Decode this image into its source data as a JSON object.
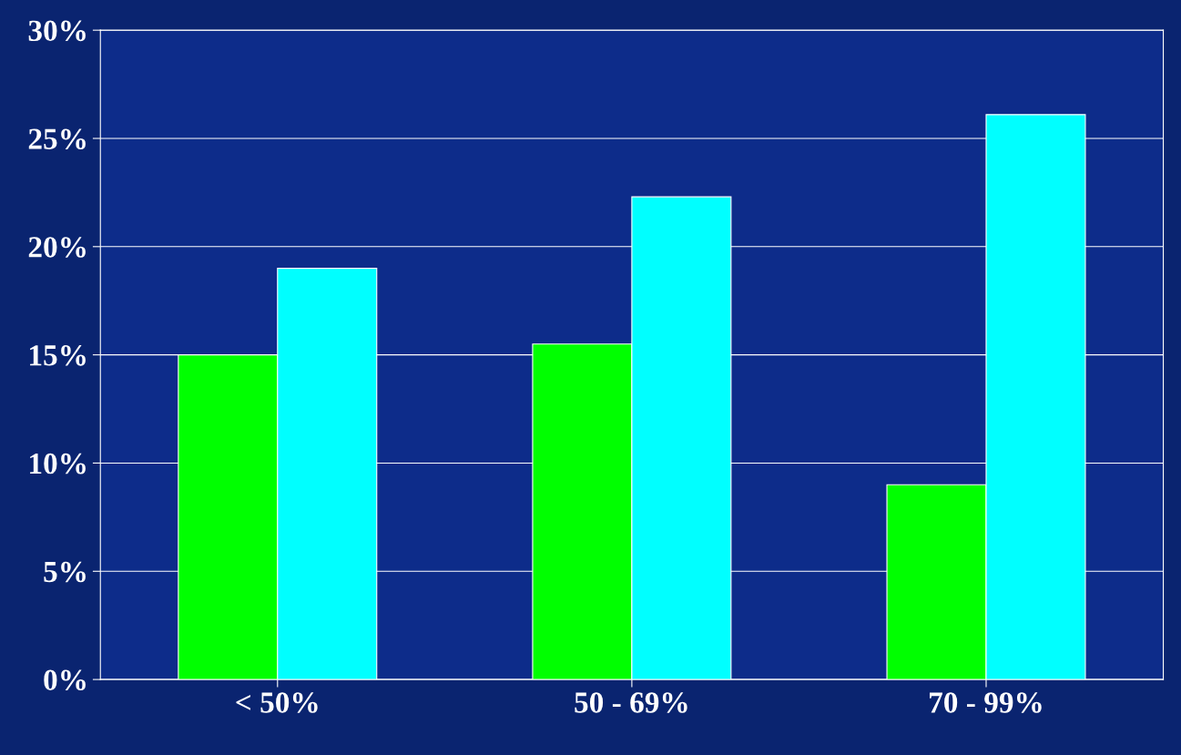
{
  "chart_data": {
    "type": "bar",
    "categories": [
      "< 50%",
      "50 - 69%",
      "70 - 99%"
    ],
    "series": [
      {
        "color": "#00ff00",
        "values": [
          15,
          15.5,
          9
        ]
      },
      {
        "color": "#00ffff",
        "values": [
          19,
          22.3,
          26.1
        ]
      }
    ],
    "ylim": [
      0,
      30
    ],
    "yticks": [
      {
        "value": 0,
        "label": "0%"
      },
      {
        "value": 5,
        "label": "5%"
      },
      {
        "value": 10,
        "label": "10%"
      },
      {
        "value": 15,
        "label": "15%"
      },
      {
        "value": 20,
        "label": "20%"
      },
      {
        "value": 25,
        "label": "25%"
      },
      {
        "value": 30,
        "label": "30%"
      }
    ],
    "grid": "y",
    "legend": false
  }
}
